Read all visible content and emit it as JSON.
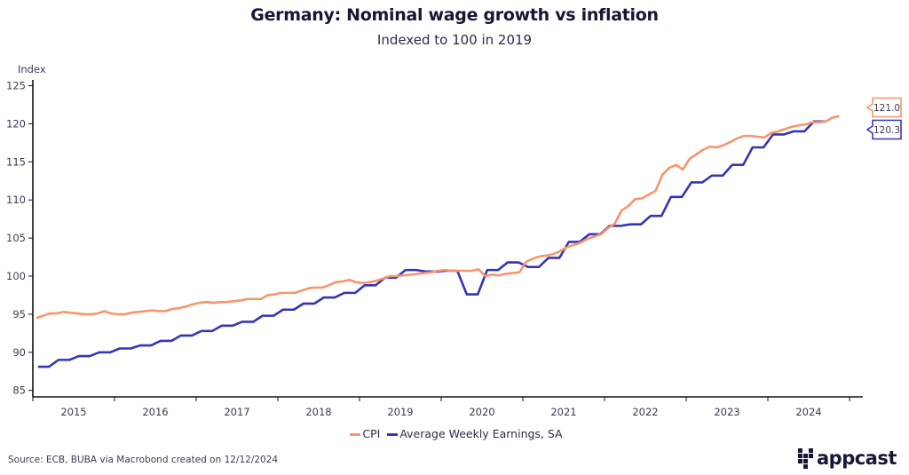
{
  "header": {
    "title": "Germany: Nominal wage growth vs inflation",
    "subtitle": "Indexed to 100 in 2019"
  },
  "footer": {
    "source": "Source: ECB, BUBA via Macrobond created on 12/12/2024",
    "logo_text": "appcast"
  },
  "chart_data": {
    "type": "line",
    "title": "Germany: Nominal wage growth vs inflation",
    "subtitle": "Indexed to 100 in 2019",
    "xlabel": "",
    "ylabel": "Index",
    "ylim": [
      84,
      126
    ],
    "yticks": [
      85,
      90,
      95,
      100,
      105,
      110,
      115,
      120,
      125
    ],
    "xlim": [
      "2015-01",
      "2025-06"
    ],
    "xtick_labels": [
      "2015",
      "2016",
      "2017",
      "2018",
      "2019",
      "2020",
      "2021",
      "2022",
      "2023",
      "2024"
    ],
    "grid": false,
    "legend": "bottom-center",
    "series": [
      {
        "name": "CPI",
        "color": "#f7956d",
        "frequency": "monthly",
        "start": "2015-01",
        "values": [
          94.5,
          94.8,
          95.1,
          95.1,
          95.3,
          95.2,
          95.1,
          95.0,
          95.0,
          95.1,
          95.4,
          95.1,
          95.0,
          95.0,
          95.2,
          95.3,
          95.4,
          95.5,
          95.4,
          95.4,
          95.7,
          95.8,
          96.0,
          96.3,
          96.5,
          96.6,
          96.5,
          96.6,
          96.6,
          96.7,
          96.8,
          97.0,
          97.0,
          97.0,
          97.5,
          97.6,
          97.8,
          97.8,
          97.8,
          98.1,
          98.4,
          98.5,
          98.5,
          98.8,
          99.2,
          99.3,
          99.5,
          99.2,
          99.1,
          99.2,
          99.4,
          99.7,
          100.0,
          100.0,
          100.1,
          100.2,
          100.3,
          100.4,
          100.5,
          100.7,
          100.8,
          100.7,
          100.7,
          100.7,
          100.7,
          100.9,
          100.0,
          100.2,
          100.1,
          100.3,
          100.4,
          100.5,
          101.9,
          102.3,
          102.6,
          102.7,
          102.9,
          103.3,
          103.8,
          104.1,
          104.4,
          104.9,
          105.2,
          105.5,
          106.3,
          106.9,
          108.6,
          109.2,
          110.1,
          110.2,
          110.7,
          111.2,
          113.3,
          114.2,
          114.6,
          114.0,
          115.4,
          116.0,
          116.6,
          117.0,
          116.9,
          117.2,
          117.6,
          118.1,
          118.4,
          118.4,
          118.3,
          118.2,
          118.8,
          119.0,
          119.3,
          119.6,
          119.8,
          119.9,
          120.2,
          120.2,
          120.3,
          120.8,
          121.0
        ],
        "last_value_label": "121.0"
      },
      {
        "name": "Average Weekly Earnings, SA",
        "color": "#3535b5",
        "frequency": "quarterly",
        "start": "2015-Q1",
        "values": [
          88.1,
          89.0,
          89.5,
          90.0,
          90.5,
          90.9,
          91.5,
          92.2,
          92.8,
          93.5,
          94.0,
          94.8,
          95.6,
          96.4,
          97.2,
          97.8,
          98.8,
          99.8,
          100.8,
          100.6,
          100.7,
          97.6,
          100.8,
          101.8,
          101.2,
          102.4,
          104.5,
          105.5,
          106.6,
          106.8,
          107.9,
          110.4,
          112.3,
          113.2,
          114.6,
          116.9,
          118.6,
          119.0,
          120.3
        ],
        "last_value_label": "120.3"
      }
    ]
  }
}
